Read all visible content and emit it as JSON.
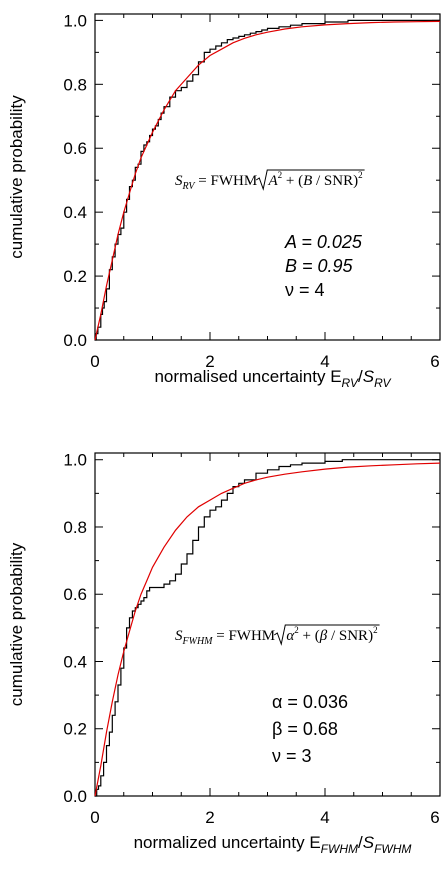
{
  "chart_data": [
    {
      "type": "line",
      "xlabel": {
        "prefix": "normalised uncertainty E",
        "sub1": "RV",
        "mid": "/S",
        "sub2": "RV"
      },
      "ylabel": "cumulative probability",
      "xlim": [
        0,
        6
      ],
      "ylim": [
        0,
        1.02
      ],
      "xticks": [
        "0",
        "2",
        "4",
        "6"
      ],
      "yticks": [
        "0.0",
        "0.2",
        "0.4",
        "0.6",
        "0.8",
        "1.0"
      ],
      "formula": {
        "lhs": "S",
        "lhs_sub": "RV",
        "eq": "= FWHM",
        "term1": "A",
        "plus": "+ (",
        "term2": "B",
        "slash": "/ SNR)",
        "sq": "2"
      },
      "annotations": [
        "A = 0.025",
        "B = 0.95",
        "ν = 4"
      ],
      "series": [
        {
          "color": "#000000",
          "x": [
            0.0,
            0.02,
            0.05,
            0.08,
            0.1,
            0.13,
            0.16,
            0.2,
            0.25,
            0.3,
            0.35,
            0.4,
            0.45,
            0.5,
            0.55,
            0.6,
            0.65,
            0.7,
            0.75,
            0.8,
            0.85,
            0.9,
            0.95,
            1.0,
            1.05,
            1.1,
            1.15,
            1.2,
            1.3,
            1.4,
            1.5,
            1.6,
            1.7,
            1.8,
            1.9,
            2.0,
            2.1,
            2.2,
            2.3,
            2.4,
            2.5,
            2.6,
            2.7,
            2.8,
            2.9,
            3.0,
            3.2,
            3.4,
            3.6,
            3.8,
            4.0,
            4.2,
            4.4,
            4.6,
            4.8,
            5.0,
            5.2,
            5.4,
            5.6,
            5.8,
            6.0
          ],
          "y": [
            0.0,
            0.02,
            0.04,
            0.04,
            0.08,
            0.1,
            0.12,
            0.16,
            0.22,
            0.26,
            0.3,
            0.33,
            0.35,
            0.4,
            0.44,
            0.48,
            0.5,
            0.54,
            0.55,
            0.59,
            0.61,
            0.62,
            0.64,
            0.66,
            0.67,
            0.69,
            0.71,
            0.73,
            0.76,
            0.78,
            0.79,
            0.81,
            0.83,
            0.87,
            0.9,
            0.91,
            0.92,
            0.93,
            0.94,
            0.945,
            0.95,
            0.955,
            0.96,
            0.965,
            0.97,
            0.975,
            0.98,
            0.985,
            0.99,
            0.99,
            0.995,
            0.995,
            1.0,
            1.0,
            1.0,
            1.0,
            1.0,
            1.0,
            1.0,
            1.0,
            1.0
          ]
        },
        {
          "color": "#e00000",
          "x": [
            0.0,
            0.1,
            0.2,
            0.3,
            0.4,
            0.5,
            0.6,
            0.7,
            0.8,
            0.9,
            1.0,
            1.2,
            1.4,
            1.6,
            1.8,
            2.0,
            2.2,
            2.4,
            2.6,
            2.8,
            3.0,
            3.3,
            3.6,
            4.0,
            4.4,
            4.8,
            5.2,
            5.6,
            6.0
          ],
          "y": [
            0.0,
            0.08,
            0.17,
            0.25,
            0.33,
            0.4,
            0.46,
            0.52,
            0.57,
            0.61,
            0.65,
            0.72,
            0.78,
            0.82,
            0.86,
            0.89,
            0.91,
            0.93,
            0.944,
            0.955,
            0.963,
            0.973,
            0.98,
            0.986,
            0.99,
            0.993,
            0.995,
            0.996,
            0.997
          ]
        }
      ]
    },
    {
      "type": "line",
      "xlabel": {
        "prefix": "normalized uncertainty E",
        "sub1": "FWHM",
        "mid": "/S",
        "sub2": "FWHM"
      },
      "ylabel": "cumulative probability",
      "xlim": [
        0,
        6
      ],
      "ylim": [
        0,
        1.02
      ],
      "xticks": [
        "0",
        "2",
        "4",
        "6"
      ],
      "yticks": [
        "0.0",
        "0.2",
        "0.4",
        "0.6",
        "0.8",
        "1.0"
      ],
      "formula": {
        "lhs": "S",
        "lhs_sub": "FWHM",
        "eq": "= FWHM",
        "term1": "α",
        "plus": "+ (",
        "term2": "β",
        "slash": "/ SNR)",
        "sq": "2"
      },
      "annotations": [
        "α = 0.036",
        "β = 0.68",
        "ν = 3"
      ],
      "series": [
        {
          "color": "#000000",
          "x": [
            0.0,
            0.03,
            0.06,
            0.1,
            0.15,
            0.2,
            0.25,
            0.3,
            0.35,
            0.4,
            0.45,
            0.5,
            0.55,
            0.6,
            0.65,
            0.7,
            0.75,
            0.8,
            0.85,
            0.9,
            0.95,
            1.0,
            1.1,
            1.2,
            1.3,
            1.4,
            1.5,
            1.6,
            1.7,
            1.8,
            1.9,
            2.0,
            2.1,
            2.2,
            2.3,
            2.4,
            2.5,
            2.6,
            2.8,
            3.0,
            3.2,
            3.4,
            3.6,
            3.8,
            4.0,
            4.3,
            4.6,
            5.0,
            5.4,
            5.8,
            6.0
          ],
          "y": [
            0.0,
            0.02,
            0.03,
            0.06,
            0.1,
            0.15,
            0.19,
            0.24,
            0.28,
            0.33,
            0.38,
            0.44,
            0.5,
            0.53,
            0.55,
            0.56,
            0.57,
            0.58,
            0.59,
            0.61,
            0.62,
            0.62,
            0.62,
            0.63,
            0.64,
            0.66,
            0.69,
            0.72,
            0.76,
            0.8,
            0.83,
            0.85,
            0.86,
            0.88,
            0.9,
            0.92,
            0.93,
            0.94,
            0.96,
            0.97,
            0.98,
            0.985,
            0.99,
            0.99,
            0.995,
            1.0,
            1.0,
            1.0,
            1.0,
            1.0,
            1.0
          ]
        },
        {
          "color": "#e00000",
          "x": [
            0.0,
            0.1,
            0.2,
            0.3,
            0.4,
            0.5,
            0.6,
            0.7,
            0.8,
            0.9,
            1.0,
            1.2,
            1.4,
            1.6,
            1.8,
            2.0,
            2.2,
            2.4,
            2.6,
            2.8,
            3.0,
            3.3,
            3.6,
            4.0,
            4.4,
            4.8,
            5.2,
            5.6,
            6.0
          ],
          "y": [
            0.0,
            0.09,
            0.19,
            0.28,
            0.36,
            0.43,
            0.49,
            0.55,
            0.6,
            0.64,
            0.68,
            0.74,
            0.79,
            0.83,
            0.86,
            0.88,
            0.9,
            0.915,
            0.93,
            0.94,
            0.948,
            0.957,
            0.964,
            0.972,
            0.978,
            0.982,
            0.985,
            0.988,
            0.99
          ]
        }
      ]
    }
  ]
}
